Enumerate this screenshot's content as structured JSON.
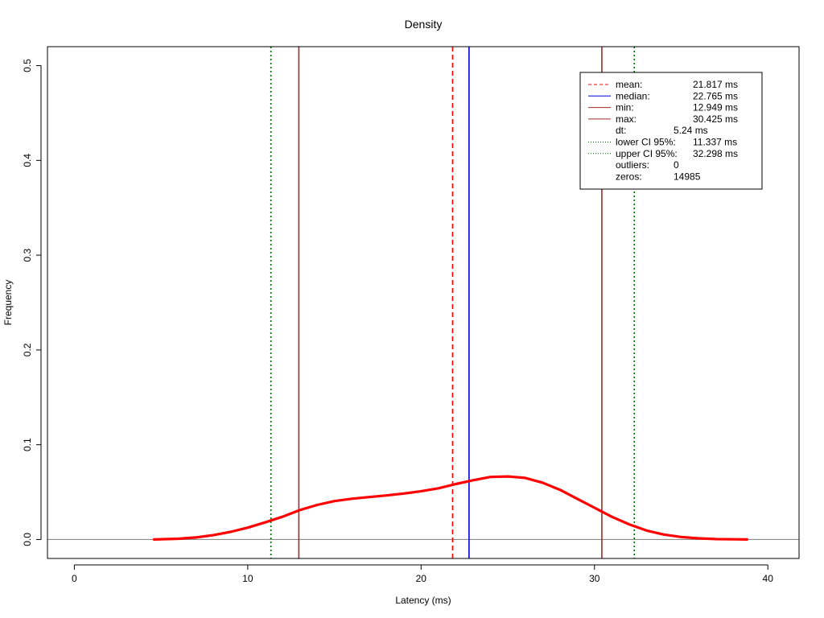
{
  "chart_data": {
    "type": "line",
    "title": "Density",
    "xlabel": "Latency (ms)",
    "ylabel": "Frequency",
    "xlim": [
      -1.55,
      41.8
    ],
    "ylim": [
      -0.02,
      0.52
    ],
    "xticks": [
      0,
      10,
      20,
      30,
      40
    ],
    "yticks": [
      0.0,
      0.1,
      0.2,
      0.3,
      0.4,
      0.5
    ],
    "xtick_labels": [
      "0",
      "10",
      "20",
      "30",
      "40"
    ],
    "ytick_labels": [
      "0.0",
      "0.1",
      "0.2",
      "0.3",
      "0.4",
      "0.5"
    ],
    "grid": false,
    "baseline": 0,
    "series": [
      {
        "color": "#ff0000",
        "x": [
          4.6,
          6,
          7,
          8,
          9,
          10,
          11,
          12,
          13,
          14,
          15,
          16,
          17,
          18,
          19,
          20,
          21,
          22,
          23,
          24,
          25,
          26,
          27,
          28,
          29,
          30,
          31,
          32,
          33,
          34,
          35,
          36,
          37,
          38,
          38.8
        ],
        "y": [
          0.0,
          0.0008,
          0.0022,
          0.0045,
          0.008,
          0.0125,
          0.018,
          0.024,
          0.031,
          0.0365,
          0.0405,
          0.043,
          0.0448,
          0.0465,
          0.0485,
          0.051,
          0.054,
          0.0585,
          0.0625,
          0.066,
          0.0665,
          0.065,
          0.06,
          0.0525,
          0.043,
          0.0335,
          0.024,
          0.016,
          0.0095,
          0.0052,
          0.0027,
          0.0012,
          0.0005,
          0.0002,
          0.0
        ]
      }
    ],
    "vlines": [
      {
        "key": "mean",
        "x": 21.817,
        "color": "#ff0000",
        "dash": "dashed"
      },
      {
        "key": "median",
        "x": 22.765,
        "color": "#0000cd",
        "dash": "solid"
      },
      {
        "key": "min",
        "x": 12.949,
        "color": "#a52a2a",
        "dash": "solid"
      },
      {
        "key": "max",
        "x": 30.425,
        "color": "#a52a2a",
        "dash": "solid"
      },
      {
        "key": "lower_ci",
        "x": 11.337,
        "color": "#006400",
        "dash": "dotted"
      },
      {
        "key": "upper_ci",
        "x": 32.298,
        "color": "#006400",
        "dash": "dotted"
      }
    ],
    "legend": {
      "placement": "top-right",
      "entries": [
        {
          "label": "mean:",
          "value": "21.817 ms",
          "color": "#ff0000",
          "dash": "dashed"
        },
        {
          "label": "median:",
          "value": "22.765 ms",
          "color": "#0000cd",
          "dash": "solid"
        },
        {
          "label": "min:",
          "value": "12.949 ms",
          "color": "#a52a2a",
          "dash": "solid"
        },
        {
          "label": "max:",
          "value": "30.425 ms",
          "color": "#a52a2a",
          "dash": "solid"
        },
        {
          "label": "dt:",
          "value": "5.24 ms",
          "color": "",
          "dash": "none"
        },
        {
          "label": "lower CI 95%:",
          "value": "11.337 ms",
          "color": "#006400",
          "dash": "dotted"
        },
        {
          "label": "upper CI 95%:",
          "value": "32.298 ms",
          "color": "#006400",
          "dash": "dotted"
        },
        {
          "label": "outliers:",
          "value": "0",
          "color": "",
          "dash": "none"
        },
        {
          "label": "zeros:",
          "value": "14985",
          "color": "",
          "dash": "none"
        }
      ]
    }
  }
}
